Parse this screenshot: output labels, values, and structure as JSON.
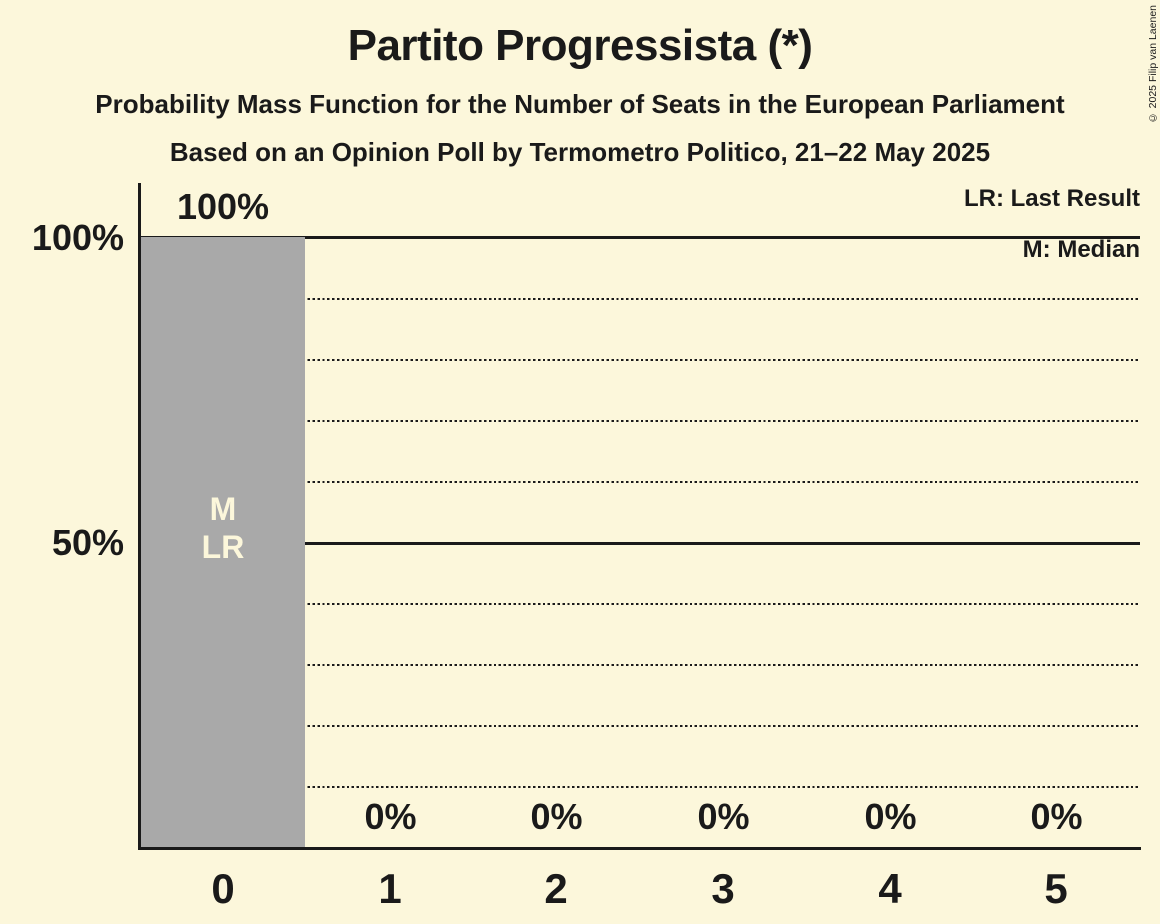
{
  "chart_data": {
    "type": "bar",
    "title": "Partito Progressista (*)",
    "subtitle": "Probability Mass Function for the Number of Seats in the European Parliament",
    "source_line": "Based on an Opinion Poll by Termometro Politico, 21–22 May 2025",
    "copyright": "© 2025 Filip van Laenen",
    "categories": [
      "0",
      "1",
      "2",
      "3",
      "4",
      "5"
    ],
    "values": [
      100,
      0,
      0,
      0,
      0,
      0
    ],
    "value_labels": [
      "100%",
      "0%",
      "0%",
      "0%",
      "0%",
      "0%"
    ],
    "ylim": [
      0,
      100
    ],
    "ytick_labels": [
      "100%",
      "50%"
    ],
    "grid_interval_pct": 10,
    "legend_position": "top-right",
    "legend": [
      {
        "abbr": "LR",
        "label": "LR: Last Result"
      },
      {
        "abbr": "M",
        "label": "M: Median"
      }
    ],
    "bar_annotations": [
      "M",
      "LR"
    ],
    "median_seats": "0",
    "last_result_seats": "0",
    "colors": {
      "background": "#FCF7DB",
      "bar": "#A9A9A9",
      "text": "#1A1A1A",
      "bar_annotation_text": "#FCF7DB"
    }
  }
}
